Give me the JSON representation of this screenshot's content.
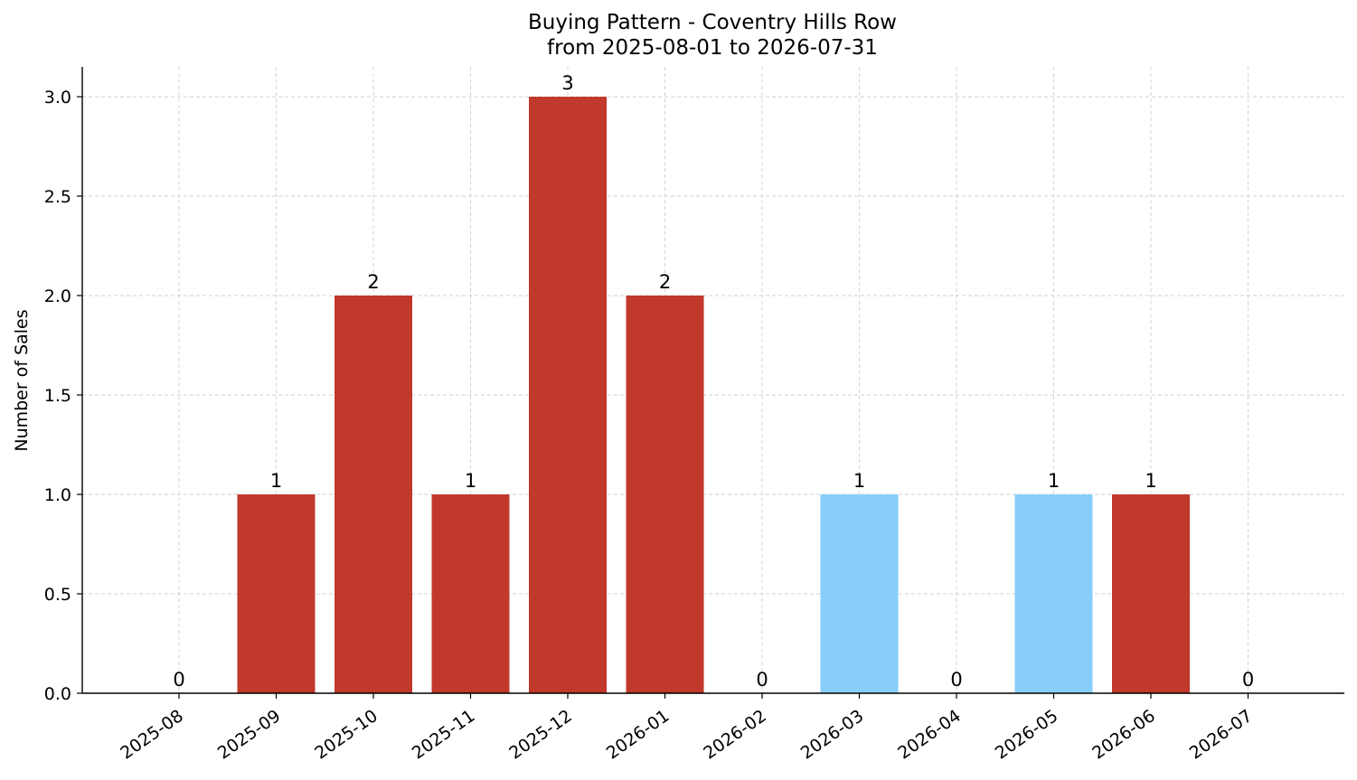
{
  "chart_data": {
    "type": "bar",
    "title": "Buying Pattern - Coventry Hills Row",
    "subtitle": "from 2025-08-01 to 2026-07-31",
    "xlabel": "",
    "ylabel": "Number of Sales",
    "ylim": [
      0,
      3.15
    ],
    "yticks": [
      "0.0",
      "0.5",
      "1.0",
      "1.5",
      "2.0",
      "2.5",
      "3.0"
    ],
    "grid": true,
    "categories": [
      "2025-08",
      "2025-09",
      "2025-10",
      "2025-11",
      "2025-12",
      "2026-01",
      "2026-02",
      "2026-03",
      "2026-04",
      "2026-05",
      "2026-06",
      "2026-07"
    ],
    "values": [
      0,
      1,
      2,
      1,
      3,
      2,
      0,
      1,
      0,
      1,
      1,
      0
    ],
    "bar_colors": [
      "#c0392b",
      "#c0392b",
      "#c0392b",
      "#c0392b",
      "#c0392b",
      "#c0392b",
      "#c0392b",
      "#87cefa",
      "#c0392b",
      "#87cefa",
      "#c0392b",
      "#c0392b"
    ],
    "data_labels": [
      "0",
      "1",
      "2",
      "1",
      "3",
      "2",
      "0",
      "1",
      "0",
      "1",
      "1",
      "0"
    ]
  }
}
